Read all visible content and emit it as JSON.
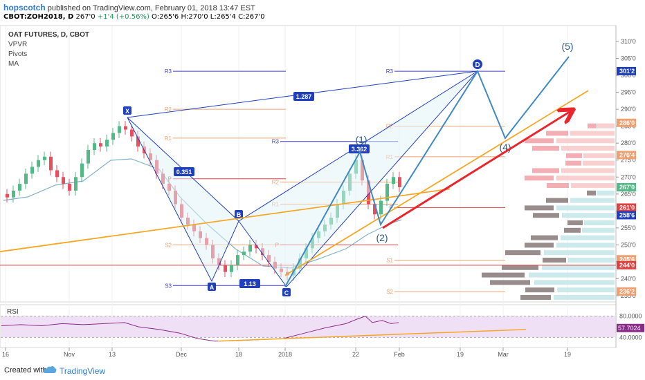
{
  "header": {
    "author": "hopscotch",
    "published_text": "published on TradingView.com, February 01, 2018 13:47 EST",
    "ticker": "CBOT:ZOH2018, D",
    "last": "267'0",
    "change": "+1'4 (+0.56%)",
    "open": "O:265'6",
    "high": "H:270'0",
    "low": "L:265'4",
    "close": "C:267'0"
  },
  "legend": {
    "title": "OAT FUTURES, D, CBOT",
    "items": [
      "VPVR",
      "Pivots",
      "MA"
    ]
  },
  "rsi_label": "RSI",
  "footer": {
    "created": "Created with",
    "brand": "TradingView"
  },
  "colors": {
    "up_candle": "#53b987",
    "down_candle": "#eb4d5c",
    "ma_line": "#7fb2c9",
    "pattern_line": "#1f3fbf",
    "wave_line": "#3d8ac4",
    "trend_line": "#f5a623",
    "arrow": "#e8262c",
    "pivot_blue": "#3f3fc4",
    "pivot_orange": "#f0a070",
    "pivot_red": "#e04040",
    "rsi_line": "#8a2b8a",
    "rsi_fill": "#f0e0f5"
  },
  "chart_data": {
    "type": "candlestick",
    "title": "OAT FUTURES, D, CBOT",
    "price_axis": {
      "ticks": [
        "310'0",
        "305'0",
        "300'0",
        "295'0",
        "290'0",
        "285'0",
        "280'0",
        "275'0",
        "270'0",
        "265'0",
        "260'0",
        "255'0",
        "250'0",
        "245'0",
        "240'0",
        "235'0"
      ],
      "tick_values": [
        310,
        305,
        300,
        295,
        290,
        285,
        280,
        275,
        270,
        265,
        260,
        255,
        250,
        245,
        240,
        235
      ],
      "badges": [
        {
          "label": "301'2",
          "value": 301.25,
          "color": "#1f3fbf"
        },
        {
          "label": "286'0",
          "value": 286,
          "color": "#f0a070"
        },
        {
          "label": "276'4",
          "value": 276.5,
          "color": "#f0a070"
        },
        {
          "label": "267'0",
          "value": 267,
          "color": "#53b987"
        },
        {
          "label": "261'0",
          "value": 261,
          "color": "#e04040"
        },
        {
          "label": "258'6",
          "value": 258.75,
          "color": "#1f3fbf"
        },
        {
          "label": "245'6",
          "value": 245.75,
          "color": "#f0a070"
        },
        {
          "label": "244'0",
          "value": 244,
          "color": "#e04040"
        },
        {
          "label": "236'2",
          "value": 236.25,
          "color": "#f0a070"
        }
      ]
    },
    "time_axis": [
      "16",
      "Nov",
      "13",
      "Dec",
      "18",
      "2018",
      "22",
      "Feb",
      "19",
      "Mar",
      "19"
    ],
    "harmonic_points": [
      "X",
      "A",
      "B",
      "C",
      "D"
    ],
    "ratios": [
      "0.351",
      "1.13",
      "1.287",
      "3.362"
    ],
    "wave_labels": [
      "(1)",
      "(2)",
      "(4)",
      "(5)"
    ],
    "pivot_labels": [
      "R3",
      "R2",
      "R1",
      "P",
      "S1",
      "S2",
      "S3"
    ],
    "rsi": {
      "ticks": [
        "80.0000",
        "40.0000"
      ],
      "value_label": "57.7024",
      "range": [
        0,
        100
      ]
    }
  }
}
